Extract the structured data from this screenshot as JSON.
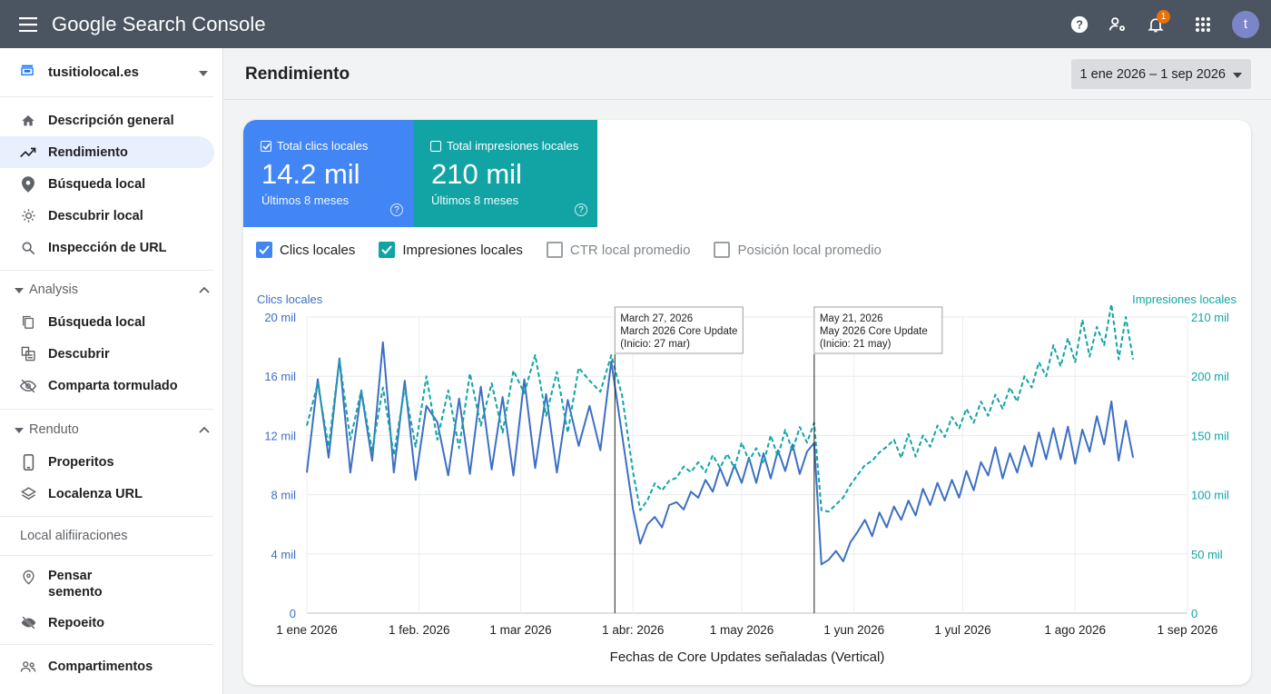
{
  "app": {
    "title": "Google Search Console",
    "notification_count": "1",
    "avatar_letter": "t"
  },
  "icons": [
    "menu-icon",
    "help-icon",
    "manage-accounts-icon",
    "bell-icon",
    "apps-grid-icon"
  ],
  "sidebar": {
    "property": "tusitiolocal.es",
    "items": [
      {
        "label": "Descripción general",
        "icon": "home-icon"
      },
      {
        "label": "Rendimiento",
        "icon": "trending-up-icon",
        "active": true
      },
      {
        "label": "Búsqueda local",
        "icon": "location-pin-icon"
      },
      {
        "label": "Descubrir local",
        "icon": "sun-icon"
      },
      {
        "label": "Inspección de URL",
        "icon": "search-icon"
      }
    ],
    "group1": {
      "label": "Analysis",
      "items": [
        {
          "label": "Búsqueda local",
          "icon": "copy-icon"
        },
        {
          "label": "Descubrir",
          "icon": "discover-icon"
        },
        {
          "label": "Comparta tormulado",
          "icon": "hidden-icon"
        }
      ]
    },
    "group2": {
      "label": "Renduto",
      "items": [
        {
          "label": "Properitos",
          "icon": "phone-icon"
        },
        {
          "label": "Localenza URL",
          "icon": "layers-icon"
        }
      ]
    },
    "section_label": "Local alifiiraciones",
    "items2": [
      {
        "label": "Pensar\nsemento",
        "icon": "pin-outline-icon"
      },
      {
        "label": "Repoeito",
        "icon": "no-visibility-icon"
      }
    ],
    "items3": [
      {
        "label": "Compartimentos",
        "icon": "people-icon"
      }
    ]
  },
  "header": {
    "title": "Rendimiento",
    "date_range": "1 ene 2026 – 1 sep 2026"
  },
  "metrics": {
    "clicks": {
      "label": "Total clics locales",
      "value": "14.2 mil",
      "sub": "Últimos 8 meses",
      "color": "#4285f4"
    },
    "impressions": {
      "label": "Total impresiones locales",
      "value": "210 mil",
      "sub": "Últimos 8 meses",
      "color": "#12a4a4"
    }
  },
  "toggles": [
    {
      "label": "Clics locales",
      "checked": true
    },
    {
      "label": "Impresiones locales",
      "checked": true
    },
    {
      "label": "CTR local promedio",
      "checked": false
    },
    {
      "label": "Posición local promedio",
      "checked": false
    }
  ],
  "chart_data": {
    "type": "line",
    "title": "",
    "xlabel": "Fechas de Core Updates señaladas (Vertical)",
    "ylabel_left": "Clics locales",
    "ylabel_right": "Impresiones locales",
    "ylim_left": [
      0,
      20000
    ],
    "ylim_right": [
      0,
      210000
    ],
    "yticks_left": [
      "0",
      "4 mil",
      "8 mil",
      "12 mil",
      "16 mil",
      "20 mil"
    ],
    "yticks_right": [
      "0",
      "50 mil",
      "100 mil",
      "150 mil",
      "200 mil",
      "210 mil"
    ],
    "xticks": [
      "1 ene 2026",
      "1 feb. 2026",
      "1 mar 2026",
      "1 abr: 2026",
      "1 may 2026",
      "1 yun 2026",
      "1 yul 2026",
      "1 ago 2026",
      "1 sep 2026"
    ],
    "grid": true,
    "annotations": [
      {
        "x_fraction_label": "March 27, 2026",
        "line1": "March 27, 2026",
        "line2": "March 2026 Core Update",
        "line3": "(Inicio: 27 mar)",
        "day": 85
      },
      {
        "x_fraction_label": "May 21, 2026",
        "line1": "May 21, 2026",
        "line2": "May 2026 Core Update",
        "line3": "(Inicio: 21 may)",
        "day": 140
      }
    ],
    "series": [
      {
        "name": "Clics locales",
        "color": "#3d6fc4",
        "dash": false,
        "axis": "left",
        "points": [
          [
            0,
            9500
          ],
          [
            3,
            15800
          ],
          [
            6,
            10500
          ],
          [
            9,
            17200
          ],
          [
            12,
            9500
          ],
          [
            15,
            15000
          ],
          [
            18,
            10300
          ],
          [
            21,
            18300
          ],
          [
            24,
            9500
          ],
          [
            27,
            15700
          ],
          [
            30,
            9000
          ],
          [
            33,
            14000
          ],
          [
            36,
            12900
          ],
          [
            39,
            9300
          ],
          [
            42,
            14500
          ],
          [
            45,
            9400
          ],
          [
            48,
            15300
          ],
          [
            51,
            9700
          ],
          [
            54,
            14600
          ],
          [
            57,
            9300
          ],
          [
            60,
            15800
          ],
          [
            63,
            9800
          ],
          [
            66,
            14800
          ],
          [
            69,
            9500
          ],
          [
            72,
            14400
          ],
          [
            75,
            11300
          ],
          [
            78,
            14000
          ],
          [
            81,
            11000
          ],
          [
            84,
            17000
          ],
          [
            87,
            12000
          ],
          [
            90,
            7000
          ],
          [
            92,
            4700
          ],
          [
            94,
            6000
          ],
          [
            96,
            6500
          ],
          [
            98,
            5800
          ],
          [
            100,
            7300
          ],
          [
            102,
            7500
          ],
          [
            104,
            7000
          ],
          [
            106,
            8200
          ],
          [
            108,
            7800
          ],
          [
            110,
            9000
          ],
          [
            112,
            8200
          ],
          [
            114,
            9800
          ],
          [
            116,
            8600
          ],
          [
            118,
            10000
          ],
          [
            120,
            8800
          ],
          [
            122,
            10500
          ],
          [
            124,
            8800
          ],
          [
            126,
            10800
          ],
          [
            128,
            9100
          ],
          [
            130,
            11000
          ],
          [
            132,
            9600
          ],
          [
            134,
            11400
          ],
          [
            136,
            9400
          ],
          [
            138,
            10900
          ],
          [
            140,
            11500
          ],
          [
            142,
            3300
          ],
          [
            144,
            3600
          ],
          [
            146,
            4200
          ],
          [
            148,
            3500
          ],
          [
            150,
            4800
          ],
          [
            152,
            5500
          ],
          [
            154,
            6300
          ],
          [
            156,
            5200
          ],
          [
            158,
            6800
          ],
          [
            160,
            5800
          ],
          [
            162,
            7200
          ],
          [
            164,
            6300
          ],
          [
            166,
            7600
          ],
          [
            168,
            6600
          ],
          [
            170,
            8400
          ],
          [
            172,
            7300
          ],
          [
            174,
            8800
          ],
          [
            176,
            7600
          ],
          [
            178,
            9000
          ],
          [
            180,
            7800
          ],
          [
            182,
            9600
          ],
          [
            184,
            8300
          ],
          [
            186,
            10200
          ],
          [
            188,
            9300
          ],
          [
            190,
            11200
          ],
          [
            192,
            9100
          ],
          [
            194,
            10800
          ],
          [
            196,
            9500
          ],
          [
            198,
            11300
          ],
          [
            200,
            9900
          ],
          [
            202,
            12200
          ],
          [
            204,
            10400
          ],
          [
            206,
            12500
          ],
          [
            208,
            10400
          ],
          [
            210,
            12600
          ],
          [
            212,
            10100
          ],
          [
            214,
            12400
          ],
          [
            216,
            10900
          ],
          [
            218,
            13300
          ],
          [
            220,
            11400
          ],
          [
            222,
            14300
          ],
          [
            224,
            10300
          ],
          [
            226,
            13000
          ],
          [
            228,
            10500
          ]
        ]
      },
      {
        "name": "Impresiones locales",
        "color": "#12a4a4",
        "dash": true,
        "axis": "right",
        "points": [
          [
            0,
            133000
          ],
          [
            3,
            163000
          ],
          [
            6,
            118000
          ],
          [
            9,
            180000
          ],
          [
            12,
            123000
          ],
          [
            15,
            158000
          ],
          [
            18,
            115000
          ],
          [
            21,
            160000
          ],
          [
            24,
            112000
          ],
          [
            27,
            160000
          ],
          [
            30,
            118000
          ],
          [
            33,
            168000
          ],
          [
            36,
            123000
          ],
          [
            39,
            158000
          ],
          [
            42,
            117000
          ],
          [
            45,
            170000
          ],
          [
            48,
            133000
          ],
          [
            51,
            163000
          ],
          [
            54,
            128000
          ],
          [
            57,
            172000
          ],
          [
            60,
            156000
          ],
          [
            63,
            183000
          ],
          [
            66,
            140000
          ],
          [
            69,
            171000
          ],
          [
            72,
            128000
          ],
          [
            75,
            174000
          ],
          [
            78,
            165000
          ],
          [
            81,
            157000
          ],
          [
            84,
            183000
          ],
          [
            87,
            154000
          ],
          [
            90,
            100000
          ],
          [
            92,
            73000
          ],
          [
            94,
            80000
          ],
          [
            96,
            92000
          ],
          [
            98,
            87000
          ],
          [
            100,
            94000
          ],
          [
            102,
            96000
          ],
          [
            104,
            104000
          ],
          [
            106,
            100000
          ],
          [
            108,
            107000
          ],
          [
            110,
            100000
          ],
          [
            112,
            112000
          ],
          [
            114,
            103000
          ],
          [
            116,
            113000
          ],
          [
            118,
            103000
          ],
          [
            120,
            121000
          ],
          [
            122,
            108000
          ],
          [
            124,
            117000
          ],
          [
            126,
            106000
          ],
          [
            128,
            126000
          ],
          [
            130,
            111000
          ],
          [
            132,
            130000
          ],
          [
            134,
            115000
          ],
          [
            136,
            132000
          ],
          [
            138,
            121000
          ],
          [
            140,
            135000
          ],
          [
            142,
            73000
          ],
          [
            144,
            72000
          ],
          [
            146,
            77000
          ],
          [
            148,
            82000
          ],
          [
            150,
            91000
          ],
          [
            152,
            98000
          ],
          [
            154,
            105000
          ],
          [
            156,
            108000
          ],
          [
            158,
            114000
          ],
          [
            160,
            118000
          ],
          [
            162,
            123000
          ],
          [
            164,
            110000
          ],
          [
            166,
            127000
          ],
          [
            168,
            111000
          ],
          [
            170,
            126000
          ],
          [
            172,
            118000
          ],
          [
            174,
            133000
          ],
          [
            176,
            125000
          ],
          [
            178,
            139000
          ],
          [
            180,
            131000
          ],
          [
            182,
            145000
          ],
          [
            184,
            135000
          ],
          [
            186,
            150000
          ],
          [
            188,
            140000
          ],
          [
            190,
            155000
          ],
          [
            192,
            145000
          ],
          [
            194,
            160000
          ],
          [
            196,
            150000
          ],
          [
            198,
            168000
          ],
          [
            200,
            160000
          ],
          [
            202,
            178000
          ],
          [
            204,
            168000
          ],
          [
            206,
            190000
          ],
          [
            208,
            175000
          ],
          [
            210,
            195000
          ],
          [
            212,
            178000
          ],
          [
            214,
            208000
          ],
          [
            216,
            182000
          ],
          [
            218,
            203000
          ],
          [
            220,
            190000
          ],
          [
            222,
            219000
          ],
          [
            224,
            180000
          ],
          [
            226,
            210000
          ],
          [
            228,
            180000
          ]
        ]
      }
    ]
  }
}
